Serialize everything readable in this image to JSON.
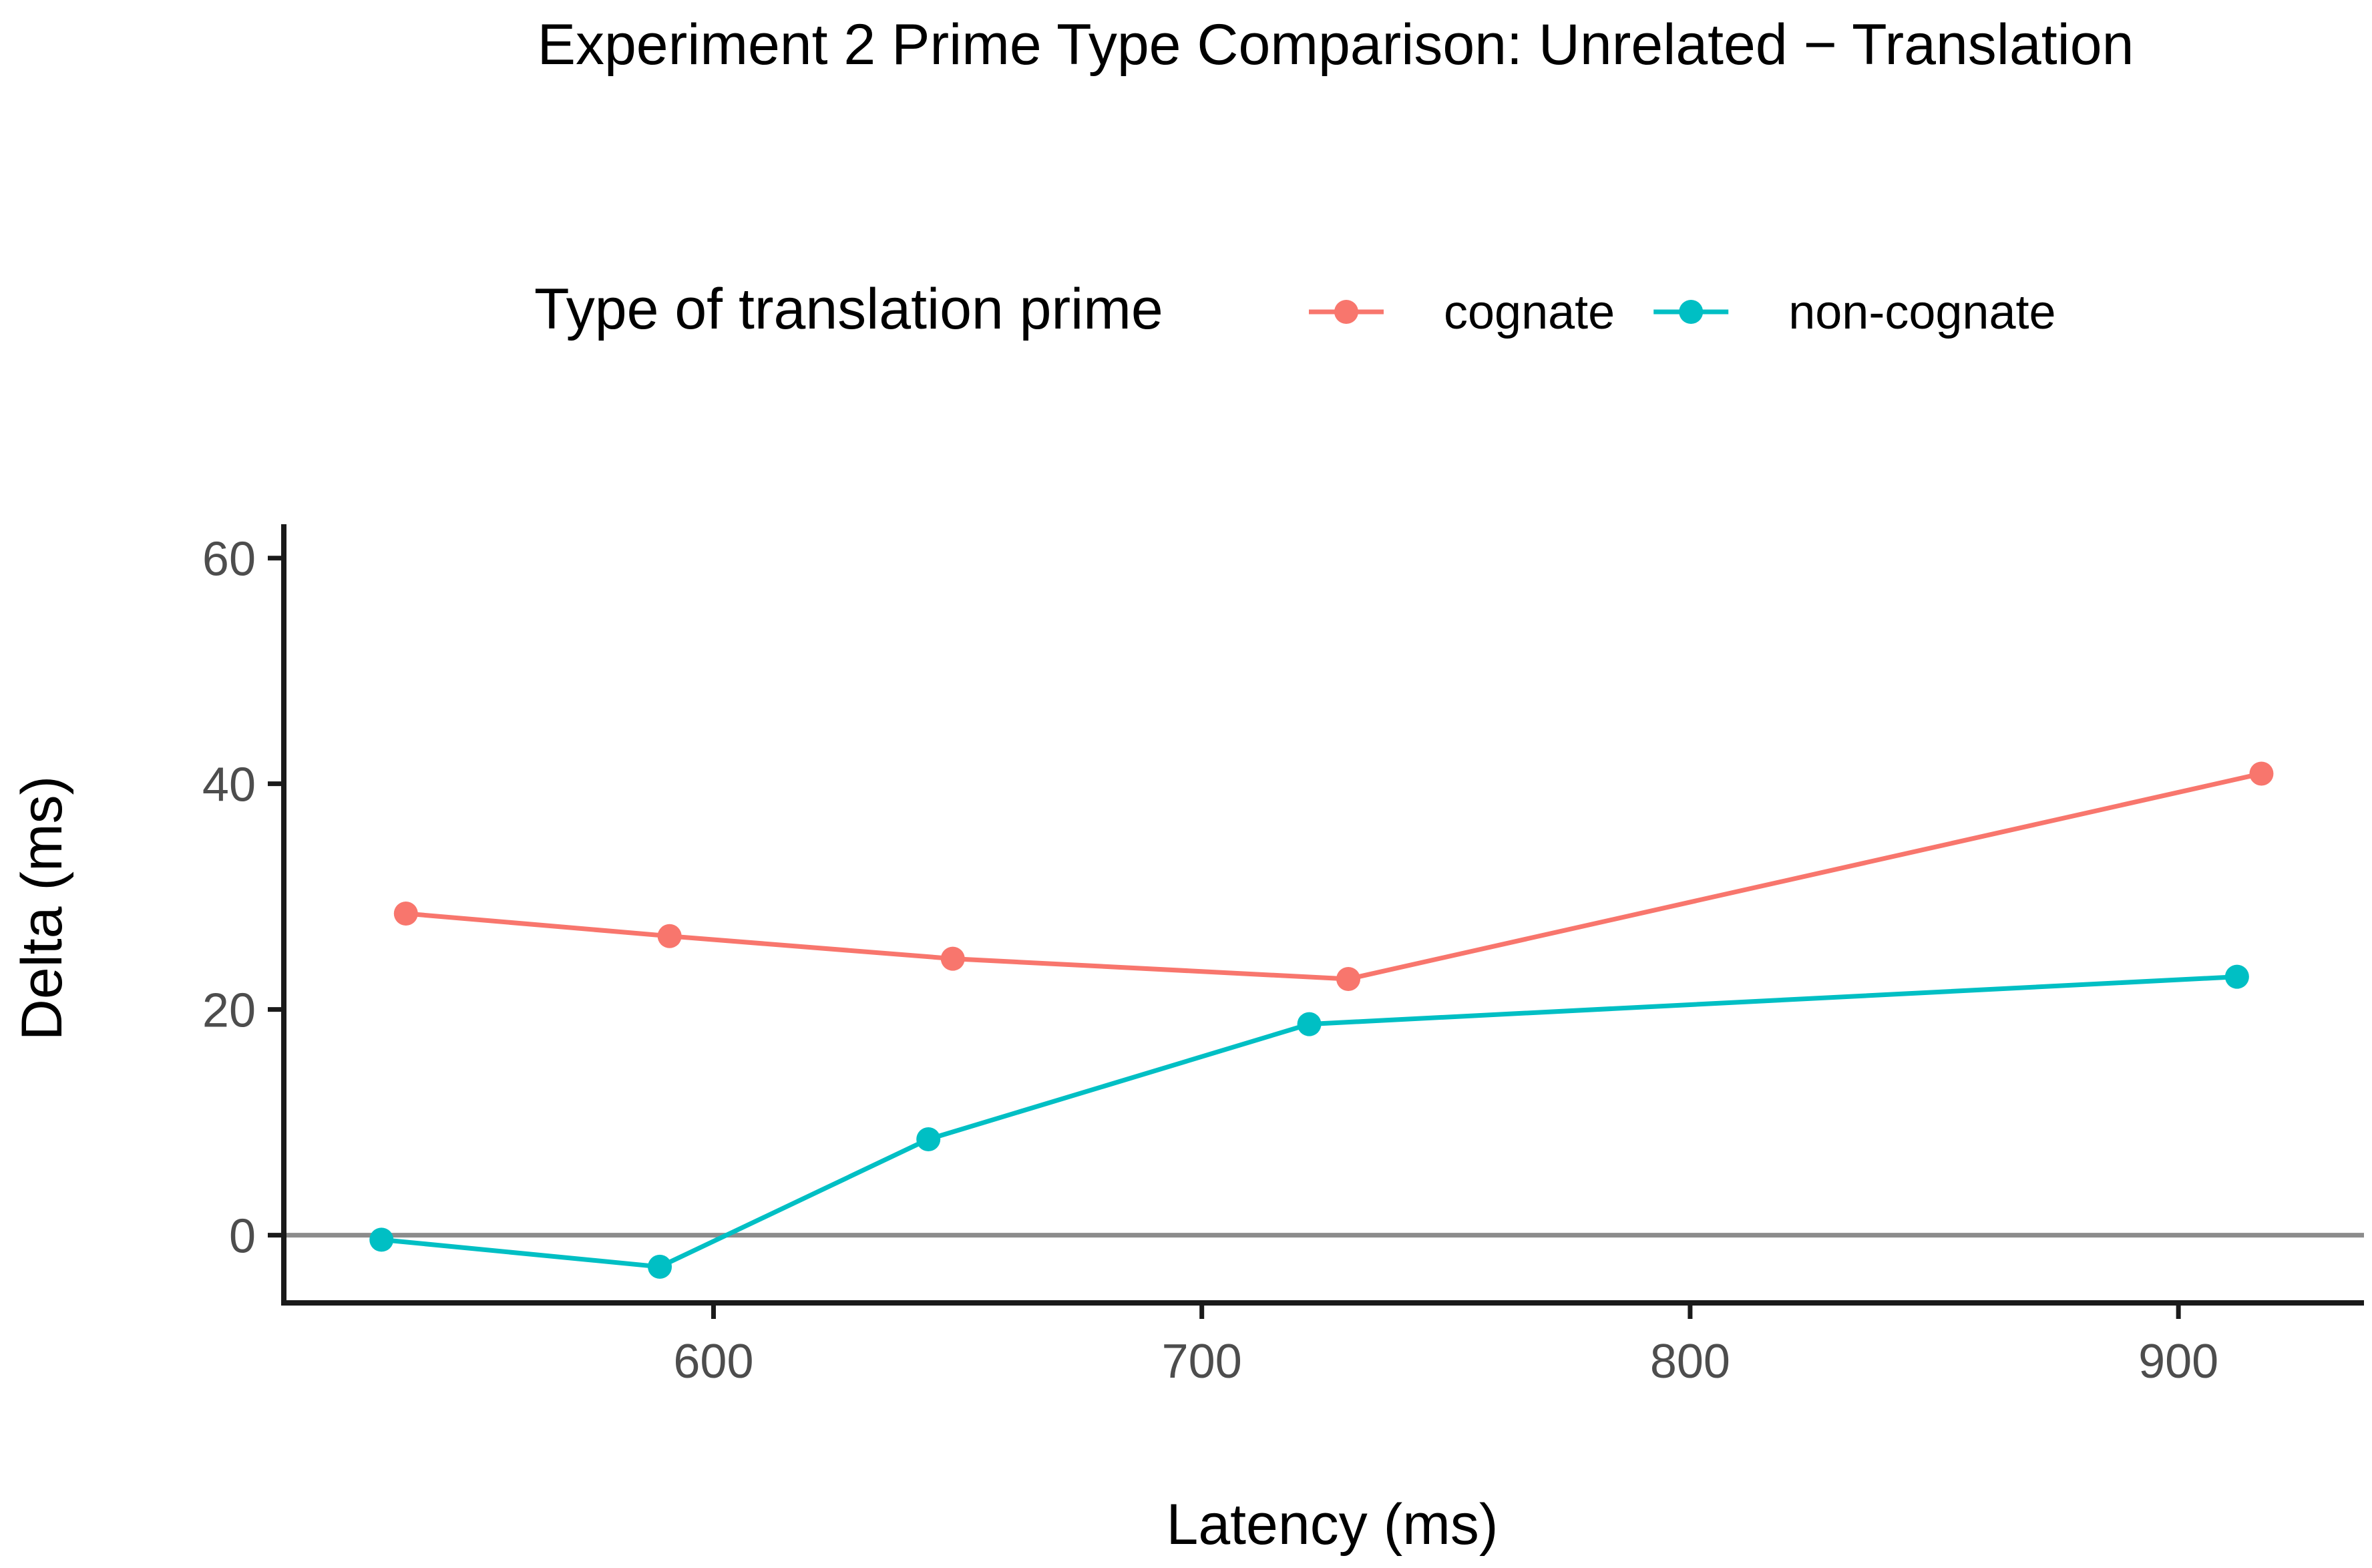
{
  "chart_data": {
    "type": "line",
    "title": "Experiment 2 Prime Type Comparison: Unrelated − Translation",
    "xlabel": "Latency (ms)",
    "ylabel": "Delta (ms)",
    "xlim": [
      512,
      938
    ],
    "ylim": [
      -6,
      63
    ],
    "x_ticks": [
      600,
      700,
      800,
      900
    ],
    "x_tick_labels": [
      "600",
      "700",
      "800",
      "900"
    ],
    "y_ticks": [
      0,
      20,
      40,
      60
    ],
    "y_tick_labels": [
      "0",
      "20",
      "40",
      "60"
    ],
    "reference_line_y": 0,
    "grid": false,
    "legend": {
      "title": "Type of translation prime",
      "position": "top"
    },
    "series": [
      {
        "name": "cognate",
        "color": "#F8766D",
        "points": [
          {
            "x": 537,
            "y": 28.5
          },
          {
            "x": 591,
            "y": 26.5
          },
          {
            "x": 649,
            "y": 24.5
          },
          {
            "x": 730,
            "y": 22.7
          },
          {
            "x": 917,
            "y": 40.9
          }
        ]
      },
      {
        "name": "non-cognate",
        "color": "#00BFC4",
        "points": [
          {
            "x": 532,
            "y": -0.4
          },
          {
            "x": 589,
            "y": -2.8
          },
          {
            "x": 644,
            "y": 8.5
          },
          {
            "x": 722,
            "y": 18.7
          },
          {
            "x": 912,
            "y": 22.9
          }
        ]
      }
    ]
  }
}
